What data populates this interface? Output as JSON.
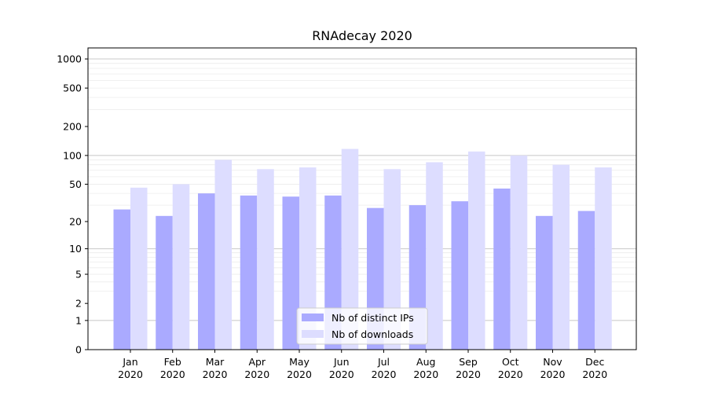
{
  "chart_data": {
    "type": "bar",
    "title": "RNAdecay 2020",
    "xlabel": "",
    "ylabel": "",
    "categories": [
      "Jan\n2020",
      "Feb\n2020",
      "Mar\n2020",
      "Apr\n2020",
      "May\n2020",
      "Jun\n2020",
      "Jul\n2020",
      "Aug\n2020",
      "Sep\n2020",
      "Oct\n2020",
      "Nov\n2020",
      "Dec\n2020"
    ],
    "series": [
      {
        "name": "Nb of distinct IPs",
        "color": "#aaaaff",
        "values": [
          27,
          23,
          40,
          38,
          37,
          38,
          28,
          30,
          33,
          45,
          23,
          26
        ]
      },
      {
        "name": "Nb of downloads",
        "color": "#ddddff",
        "values": [
          46,
          50,
          90,
          72,
          75,
          117,
          72,
          85,
          110,
          100,
          80,
          75
        ]
      }
    ],
    "y_scale": "symlog",
    "ylim": [
      0,
      1300
    ],
    "y_ticks": [
      0,
      1,
      2,
      5,
      10,
      20,
      50,
      100,
      200,
      500,
      1000
    ],
    "y_tick_labels": [
      "0",
      "1",
      "2",
      "5",
      "10",
      "20",
      "50",
      "100",
      "200",
      "500",
      "1000"
    ],
    "grid": true,
    "legend_position": "bottom-center"
  }
}
